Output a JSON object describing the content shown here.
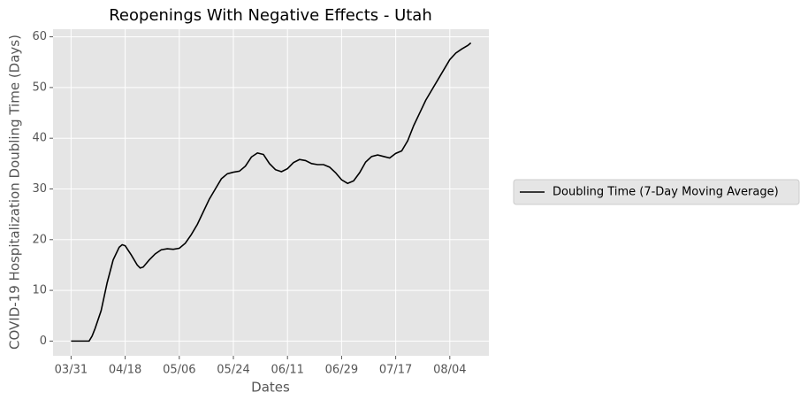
{
  "chart_data": {
    "type": "line",
    "title": "Reopenings With Negative Effects - Utah",
    "x_label": "Dates",
    "y_label": "COVID-19 Hospitalization Doubling Time (Days)",
    "x": [
      "03/31",
      "04/02",
      "04/04",
      "04/06",
      "04/07",
      "04/08",
      "04/10",
      "04/12",
      "04/14",
      "04/16",
      "04/17",
      "04/18",
      "04/20",
      "04/22",
      "04/23",
      "04/24",
      "04/26",
      "04/28",
      "04/30",
      "05/02",
      "05/04",
      "05/06",
      "05/08",
      "05/10",
      "05/12",
      "05/14",
      "05/16",
      "05/18",
      "05/20",
      "05/22",
      "05/24",
      "05/26",
      "05/28",
      "05/30",
      "06/01",
      "06/03",
      "06/05",
      "06/07",
      "06/09",
      "06/11",
      "06/13",
      "06/15",
      "06/17",
      "06/19",
      "06/21",
      "06/23",
      "06/25",
      "06/27",
      "06/29",
      "07/01",
      "07/03",
      "07/05",
      "07/07",
      "07/09",
      "07/11",
      "07/13",
      "07/15",
      "07/17",
      "07/19",
      "07/21",
      "07/23",
      "07/25",
      "07/27",
      "07/29",
      "07/31",
      "08/02",
      "08/04",
      "08/06",
      "08/08",
      "08/10",
      "08/11"
    ],
    "series": [
      {
        "name": "Doubling Time (7-Day Moving Average)",
        "color": "#000000",
        "values": [
          0,
          0,
          0,
          0,
          1,
          2.5,
          6,
          11.5,
          16,
          18.5,
          19,
          18.8,
          17,
          15,
          14.4,
          14.6,
          16,
          17.2,
          18,
          18.2,
          18.1,
          18.3,
          19.3,
          21,
          23,
          25.5,
          28,
          30,
          32,
          33,
          33.3,
          33.5,
          34.5,
          36.3,
          37.1,
          36.8,
          35,
          33.8,
          33.4,
          34,
          35.2,
          35.8,
          35.6,
          35,
          34.8,
          34.8,
          34.3,
          33.2,
          31.8,
          31.1,
          31.6,
          33.2,
          35.3,
          36.4,
          36.7,
          36.4,
          36.1,
          37,
          37.5,
          39.5,
          42.5,
          45,
          47.5,
          49.5,
          51.5,
          53.5,
          55.5,
          56.8,
          57.6,
          58.3,
          58.8
        ]
      }
    ],
    "xlim": [
      "03/25",
      "08/17"
    ],
    "xticks": [
      "03/31",
      "04/18",
      "05/06",
      "05/24",
      "06/11",
      "06/29",
      "07/17",
      "08/04"
    ],
    "ylim": [
      -2.9,
      61.5
    ],
    "yticks": [
      0,
      10,
      20,
      30,
      40,
      50,
      60
    ],
    "grid": true,
    "legend": "outside-right"
  }
}
